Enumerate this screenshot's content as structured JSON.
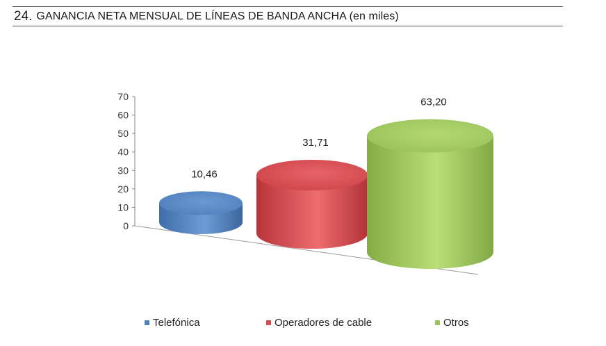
{
  "header": {
    "number": "24.",
    "title": "GANANCIA NETA MENSUAL DE LÍNEAS DE BANDA ANCHA (en miles)"
  },
  "chart_data": {
    "type": "bar",
    "style": "3d-cylinder",
    "categories": [
      "Telefónica",
      "Operadores de cable",
      "Otros"
    ],
    "values": [
      10.46,
      31.71,
      63.2
    ],
    "data_labels": [
      "10,46",
      "31,71",
      "63,20"
    ],
    "ylim": [
      0,
      70
    ],
    "y_ticks": [
      "0",
      "10",
      "20",
      "30",
      "40",
      "50",
      "60",
      "70"
    ],
    "legend_position": "bottom",
    "grid": false,
    "colors": [
      "#4f81bd",
      "#d9464b",
      "#9bc45a"
    ]
  },
  "legend": {
    "items": [
      {
        "label": "Telefónica",
        "color": "#4f81bd"
      },
      {
        "label": "Operadores de cable",
        "color": "#d9464b"
      },
      {
        "label": "Otros",
        "color": "#9bc45a"
      }
    ]
  }
}
